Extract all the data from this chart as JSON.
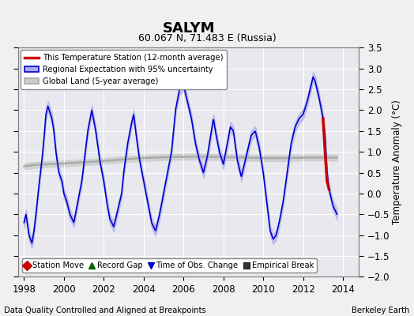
{
  "title": "SALYM",
  "subtitle": "60.067 N, 71.483 E (Russia)",
  "ylabel": "Temperature Anomaly (°C)",
  "xlabel_bottom": "Data Quality Controlled and Aligned at Breakpoints",
  "xlabel_right": "Berkeley Earth",
  "ylim": [
    -2.0,
    3.5
  ],
  "xlim": [
    1997.7,
    2014.8
  ],
  "xticks": [
    1998,
    2000,
    2002,
    2004,
    2006,
    2008,
    2010,
    2012,
    2014
  ],
  "yticks_left": [
    -2,
    -1.5,
    -1,
    -0.5,
    0,
    0.5,
    1,
    1.5,
    2,
    2.5,
    3,
    3.5
  ],
  "yticks_right": [
    -2,
    -1.5,
    -1,
    -0.5,
    0,
    0.5,
    1,
    1.5,
    2,
    2.5,
    3,
    3.5
  ],
  "bg_color": "#f0f0f0",
  "plot_bg": "#e8e8ee",
  "blue_color": "#0000cd",
  "blue_fill_color": "#aaaaee",
  "red_color": "#cc0000",
  "gray_color": "#aaaaaa",
  "gray_fill_color": "#cccccc",
  "legend_labels": [
    "This Temperature Station (12-month average)",
    "Regional Expectation with 95% uncertainty",
    "Global Land (5-year average)"
  ],
  "bottom_legend": [
    {
      "marker": "D",
      "color": "#cc0000",
      "label": "Station Move"
    },
    {
      "marker": "^",
      "color": "#006600",
      "label": "Record Gap"
    },
    {
      "marker": "v",
      "color": "#0000cd",
      "label": "Time of Obs. Change"
    },
    {
      "marker": "s",
      "color": "#333333",
      "label": "Empirical Break"
    }
  ],
  "blue_t": [
    1998.0,
    1998.1,
    1998.25,
    1998.4,
    1998.5,
    1998.6,
    1998.75,
    1998.9,
    1999.0,
    1999.1,
    1999.2,
    1999.4,
    1999.5,
    1999.6,
    1999.75,
    1999.9,
    2000.0,
    2000.15,
    2000.3,
    2000.5,
    2000.7,
    2000.9,
    2001.0,
    2001.2,
    2001.4,
    2001.6,
    2001.8,
    2002.0,
    2002.15,
    2002.3,
    2002.5,
    2002.7,
    2002.9,
    2003.0,
    2003.2,
    2003.4,
    2003.5,
    2003.6,
    2003.8,
    2004.0,
    2004.2,
    2004.4,
    2004.6,
    2004.8,
    2005.0,
    2005.2,
    2005.4,
    2005.6,
    2005.8,
    2006.0,
    2006.1,
    2006.2,
    2006.4,
    2006.5,
    2006.6,
    2006.8,
    2007.0,
    2007.2,
    2007.4,
    2007.5,
    2007.6,
    2007.8,
    2008.0,
    2008.2,
    2008.35,
    2008.5,
    2008.7,
    2008.9,
    2009.0,
    2009.2,
    2009.4,
    2009.6,
    2009.8,
    2010.0,
    2010.2,
    2010.35,
    2010.5,
    2010.65,
    2010.8,
    2011.0,
    2011.2,
    2011.4,
    2011.6,
    2011.8,
    2012.0,
    2012.2,
    2012.4,
    2012.5,
    2012.6,
    2012.8,
    2013.0,
    2013.1,
    2013.2,
    2013.3,
    2013.5,
    2013.7
  ],
  "blue_v": [
    -0.7,
    -0.5,
    -1.0,
    -1.2,
    -0.9,
    -0.5,
    0.2,
    0.8,
    1.3,
    1.9,
    2.1,
    1.8,
    1.5,
    1.0,
    0.5,
    0.3,
    0.0,
    -0.2,
    -0.5,
    -0.7,
    -0.2,
    0.3,
    0.7,
    1.5,
    2.0,
    1.5,
    0.8,
    0.3,
    -0.2,
    -0.6,
    -0.8,
    -0.4,
    0.0,
    0.5,
    1.2,
    1.7,
    1.9,
    1.5,
    0.8,
    0.3,
    -0.2,
    -0.7,
    -0.9,
    -0.5,
    0.0,
    0.5,
    1.0,
    2.0,
    2.5,
    2.6,
    2.4,
    2.2,
    1.8,
    1.5,
    1.2,
    0.8,
    0.5,
    0.9,
    1.5,
    1.8,
    1.5,
    1.0,
    0.7,
    1.2,
    1.6,
    1.5,
    0.8,
    0.4,
    0.6,
    1.0,
    1.4,
    1.5,
    1.1,
    0.5,
    -0.3,
    -0.9,
    -1.1,
    -1.0,
    -0.7,
    -0.2,
    0.5,
    1.2,
    1.6,
    1.8,
    1.9,
    2.2,
    2.6,
    2.8,
    2.7,
    2.3,
    1.8,
    1.4,
    0.5,
    0.1,
    -0.3,
    -0.5
  ],
  "red_t": [
    2013.0,
    2013.1,
    2013.2,
    2013.3
  ],
  "red_v": [
    1.8,
    1.0,
    0.3,
    0.1
  ],
  "gray_t": [
    1998.0,
    1999.0,
    2000.0,
    2001.0,
    2002.0,
    2003.0,
    2004.0,
    2005.0,
    2006.0,
    2007.0,
    2008.0,
    2009.0,
    2010.0,
    2011.0,
    2012.0,
    2013.0,
    2013.7
  ],
  "gray_v": [
    0.65,
    0.7,
    0.72,
    0.75,
    0.78,
    0.82,
    0.85,
    0.87,
    0.88,
    0.88,
    0.87,
    0.86,
    0.85,
    0.85,
    0.86,
    0.86,
    0.86
  ]
}
